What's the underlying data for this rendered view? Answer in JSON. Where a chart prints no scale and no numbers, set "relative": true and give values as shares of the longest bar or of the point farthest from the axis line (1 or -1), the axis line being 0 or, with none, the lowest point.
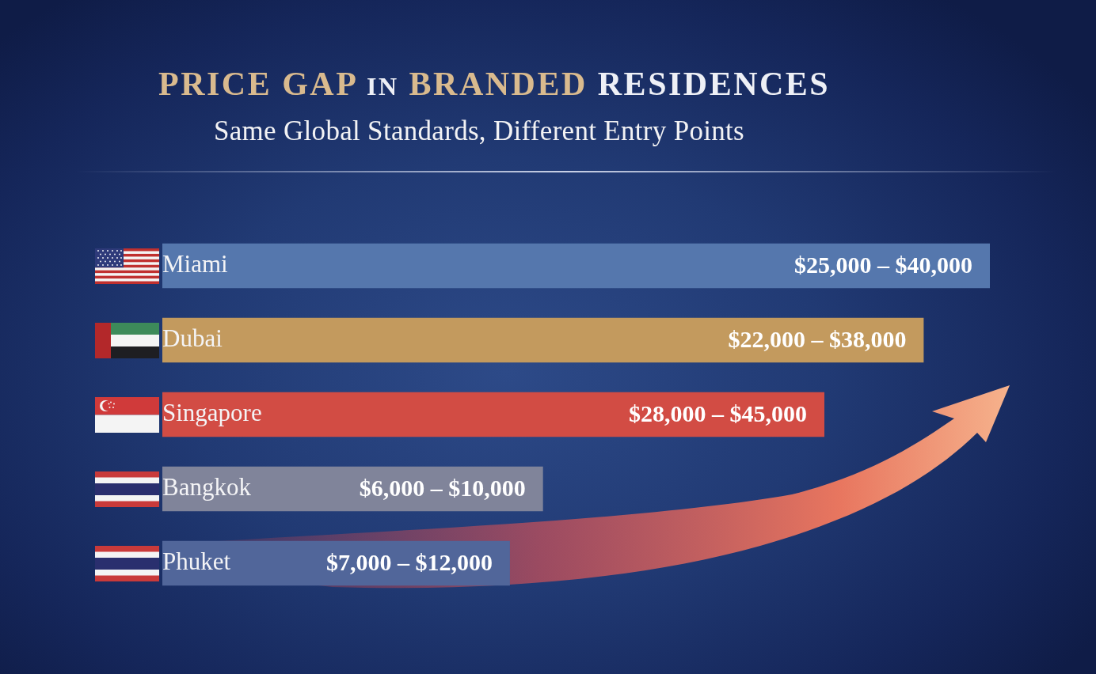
{
  "chart_data": {
    "type": "bar",
    "orientation": "horizontal",
    "relative": true,
    "title": "PRICE GAP IN BRANDED RESIDENCES",
    "subtitle": "Same Global Standards, Different Entry Points",
    "categories": [
      "Miami",
      "Dubai",
      "Singapore",
      "Bangkok",
      "Phuket"
    ],
    "values": [
      1,
      0.92,
      0.8,
      0.46,
      0.42
    ],
    "colors": [
      "#5577ad",
      "#c39a5e",
      "#d24c44",
      "#80849a",
      "#51669a"
    ],
    "annotations": [
      {
        "text": "$25,000 – $40,000",
        "x": 1,
        "y": "Miami"
      },
      {
        "text": "$22,000 – $38,000",
        "x": 0.92,
        "y": "Dubai"
      },
      {
        "text": "$28,000 – $45,000",
        "x": 0.8,
        "y": "Singapore"
      },
      {
        "text": "$6,000 – $10,000",
        "x": 0.46,
        "y": "Bangkok"
      },
      {
        "text": "$7,000 – $12,000",
        "x": 0.42,
        "y": "Phuket"
      }
    ]
  }
}
